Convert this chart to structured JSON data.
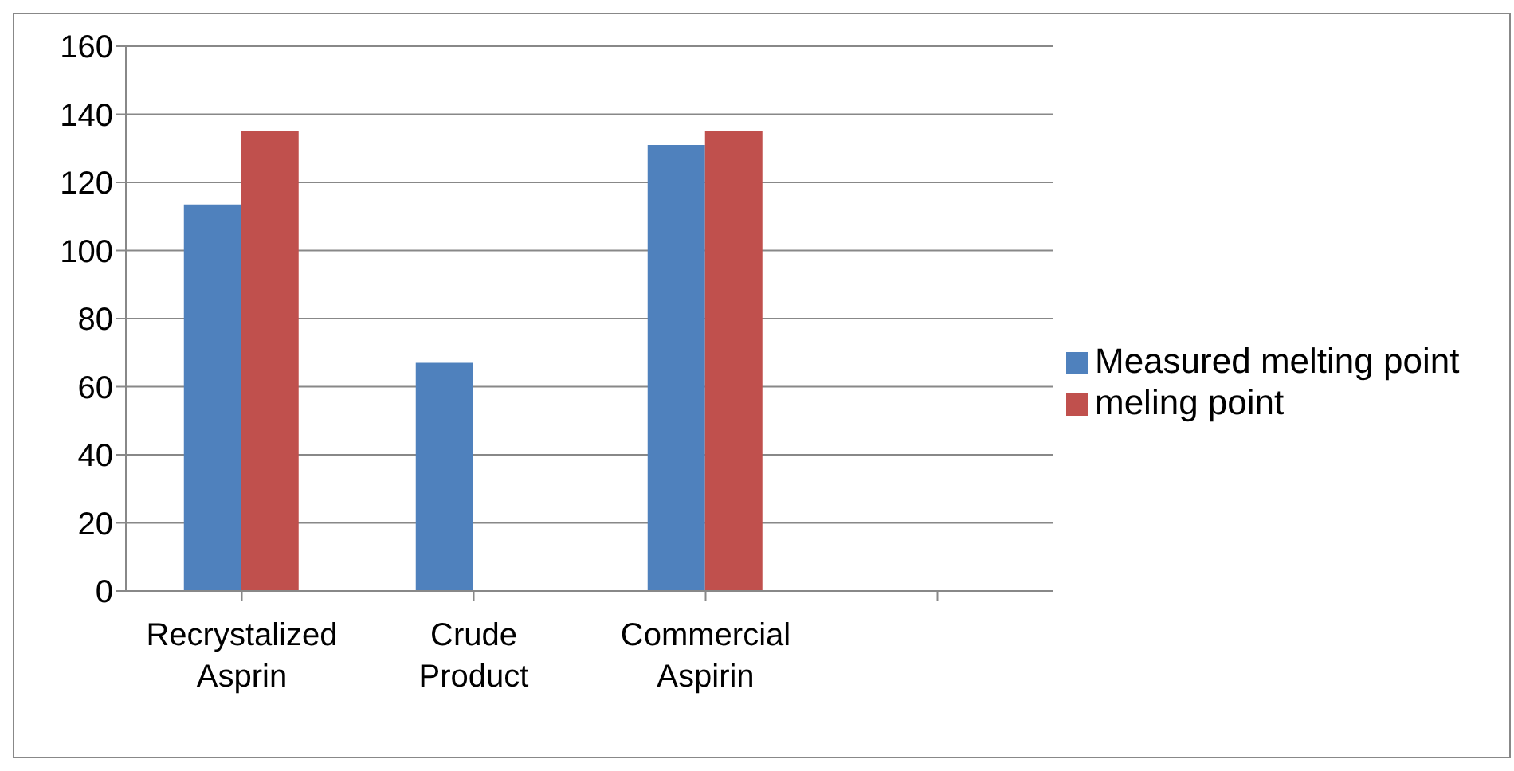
{
  "chart_data": {
    "type": "bar",
    "categories": [
      "Recrystalized Asprin",
      "Crude Product",
      "Commercial Aspirin",
      null
    ],
    "series": [
      {
        "name": "Measured melting point",
        "color": "#4f81bd",
        "values": [
          113.5,
          67,
          131,
          null
        ]
      },
      {
        "name": "meling point",
        "color": "#c0504d",
        "values": [
          135,
          null,
          135,
          null
        ]
      }
    ],
    "ylim": [
      0,
      160
    ],
    "yticks": [
      0,
      20,
      40,
      60,
      80,
      100,
      120,
      140,
      160
    ],
    "grid": "y",
    "legend": "right"
  }
}
